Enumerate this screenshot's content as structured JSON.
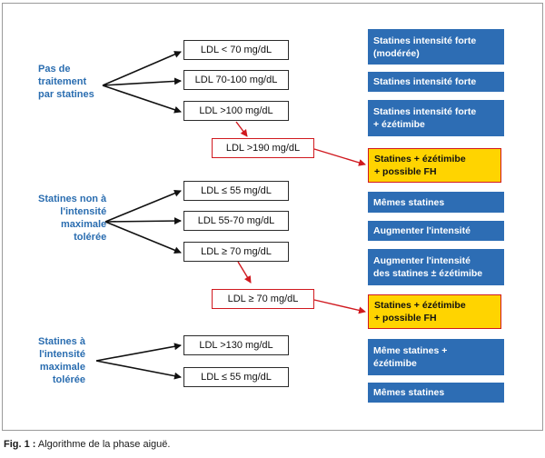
{
  "groups": [
    {
      "label": "Pas de\ntraitement\npar statines"
    },
    {
      "label": "Statines non à\nl'intensité\nmaximale\ntolérée"
    },
    {
      "label": "Statines à\nl'intensité\nmaximale\ntolérée"
    }
  ],
  "ldl_boxes": [
    "LDL < 70 mg/dL",
    "LDL 70-100 mg/dL",
    "LDL >100 mg/dL",
    "LDL >190 mg/dL",
    "LDL ≤ 55 mg/dL",
    "LDL 55-70 mg/dL",
    "LDL ≥ 70 mg/dL",
    "LDL ≥ 70 mg/dL",
    "LDL >130 mg/dL",
    "LDL ≤ 55 mg/dL"
  ],
  "results": [
    "Statines intensité forte\n(modérée)",
    "Statines intensité forte",
    "Statines intensité forte\n+ ézétimibe",
    "Statines + ézétimibe\n+ possible FH",
    "Mêmes statines",
    "Augmenter l'intensité",
    "Augmenter l'intensité\ndes statines ± ézétimibe",
    "Statines + ézétimibe\n+ possible FH",
    "Même statines +\nézétimibe",
    "Mêmes statines"
  ],
  "colors": {
    "group_text": "#2a6db0",
    "result_box": "#2d6db4",
    "highlight_box": "#ffd400",
    "highlight_border": "#d0191f"
  },
  "caption": {
    "prefix": "Fig. 1 :",
    "text": " Algorithme de la phase aiguë."
  }
}
